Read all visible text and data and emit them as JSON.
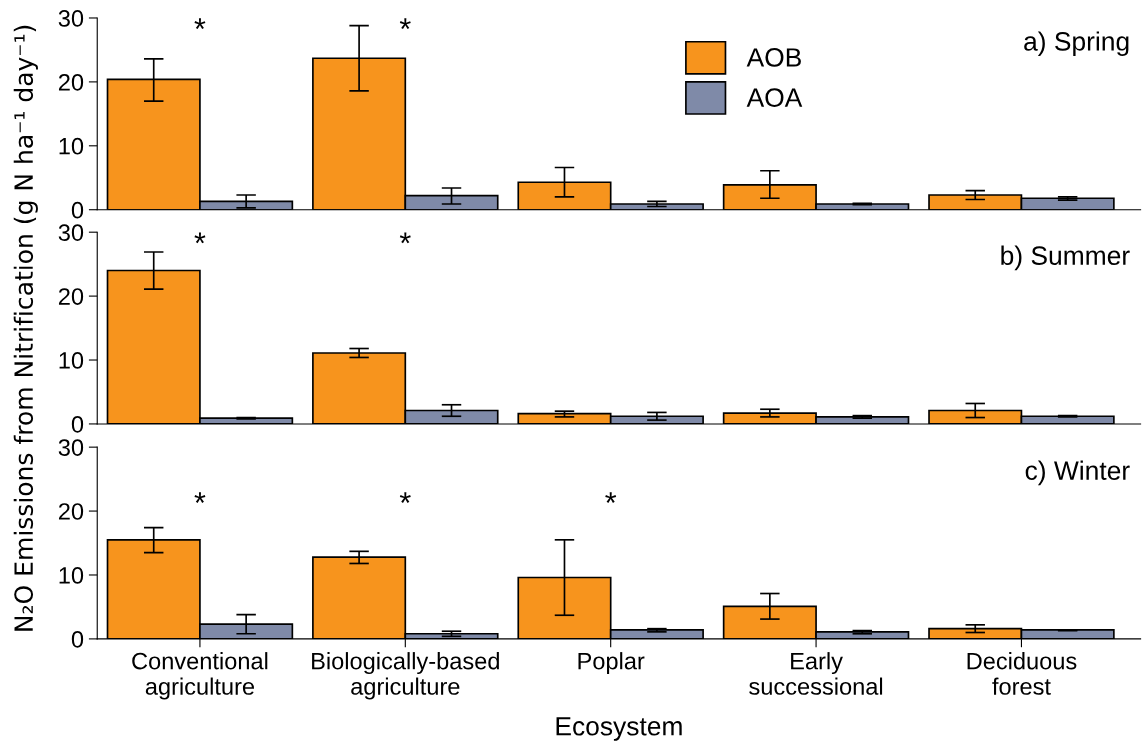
{
  "chart_data": [
    {
      "type": "bar",
      "title": "a) Spring",
      "ylabel": "N₂O Emissions from Nitrification (g N ha⁻¹ day⁻¹)",
      "categories": [
        null,
        null,
        null,
        null,
        null
      ],
      "series": [
        {
          "name": "AOB",
          "color": "#f7941d",
          "values": [
            20.4,
            23.7,
            4.3,
            3.9,
            2.3
          ],
          "errors": [
            [
              17.0,
              23.6
            ],
            [
              18.6,
              28.8
            ],
            [
              2.0,
              6.6
            ],
            [
              1.8,
              6.1
            ],
            [
              1.6,
              3.0
            ]
          ]
        },
        {
          "name": "AOA",
          "color": "#7f8aa8",
          "values": [
            1.3,
            2.2,
            0.9,
            0.9,
            1.8
          ],
          "errors": [
            [
              0.3,
              2.3
            ],
            [
              0.9,
              3.4
            ],
            [
              0.5,
              1.3
            ],
            [
              0.8,
              1.0
            ],
            [
              1.5,
              2.0
            ]
          ]
        }
      ],
      "annotations": [
        "*",
        "*"
      ],
      "ylim": [
        0,
        30
      ],
      "yticks": [
        0,
        10,
        20,
        30
      ],
      "legend": "top",
      "tick_labels": "y",
      "grid": false
    },
    {
      "type": "bar",
      "title": "b) Summer",
      "categories": [
        null,
        null,
        null,
        null,
        null
      ],
      "series": [
        {
          "color": "#f7941d",
          "values": [
            24.0,
            11.1,
            1.6,
            1.7,
            2.1
          ],
          "errors": [
            [
              21.1,
              26.9
            ],
            [
              10.4,
              11.8
            ],
            [
              1.1,
              2.0
            ],
            [
              1.1,
              2.3
            ],
            [
              1.0,
              3.2
            ]
          ]
        },
        {
          "color": "#7f8aa8",
          "values": [
            0.9,
            2.1,
            1.2,
            1.1,
            1.2
          ],
          "errors": [
            [
              0.8,
              1.0
            ],
            [
              1.2,
              3.0
            ],
            [
              0.6,
              1.8
            ],
            [
              0.9,
              1.3
            ],
            [
              1.1,
              1.3
            ]
          ]
        }
      ],
      "annotations": [
        "*",
        "*"
      ],
      "ylim": [
        0,
        30
      ],
      "yticks": [
        0,
        10,
        20,
        30
      ],
      "tick_labels": "y",
      "grid": false
    },
    {
      "type": "bar",
      "title": "c) Winter",
      "xlabel": "Ecosystem",
      "categories": [
        "Conventional\nagriculture",
        "Biologically-based\nagriculture",
        "Poplar",
        "Early\nsuccessional",
        "Deciduous\nforest"
      ],
      "series": [
        {
          "color": "#f7941d",
          "values": [
            15.5,
            12.8,
            9.6,
            5.1,
            1.6
          ],
          "errors": [
            [
              13.5,
              17.4
            ],
            [
              11.8,
              13.7
            ],
            [
              3.7,
              15.5
            ],
            [
              3.1,
              7.1
            ],
            [
              1.0,
              2.2
            ]
          ]
        },
        {
          "color": "#7f8aa8",
          "values": [
            2.3,
            0.8,
            1.4,
            1.1,
            1.4
          ],
          "errors": [
            [
              0.8,
              3.8
            ],
            [
              0.4,
              1.2
            ],
            [
              1.1,
              1.6
            ],
            [
              0.8,
              1.3
            ],
            [
              1.3,
              1.4
            ]
          ]
        }
      ],
      "annotations": [
        "*",
        "*",
        "*"
      ],
      "ylim": [
        0,
        30
      ],
      "yticks": [
        0,
        10,
        20,
        30
      ],
      "grid": false
    }
  ]
}
